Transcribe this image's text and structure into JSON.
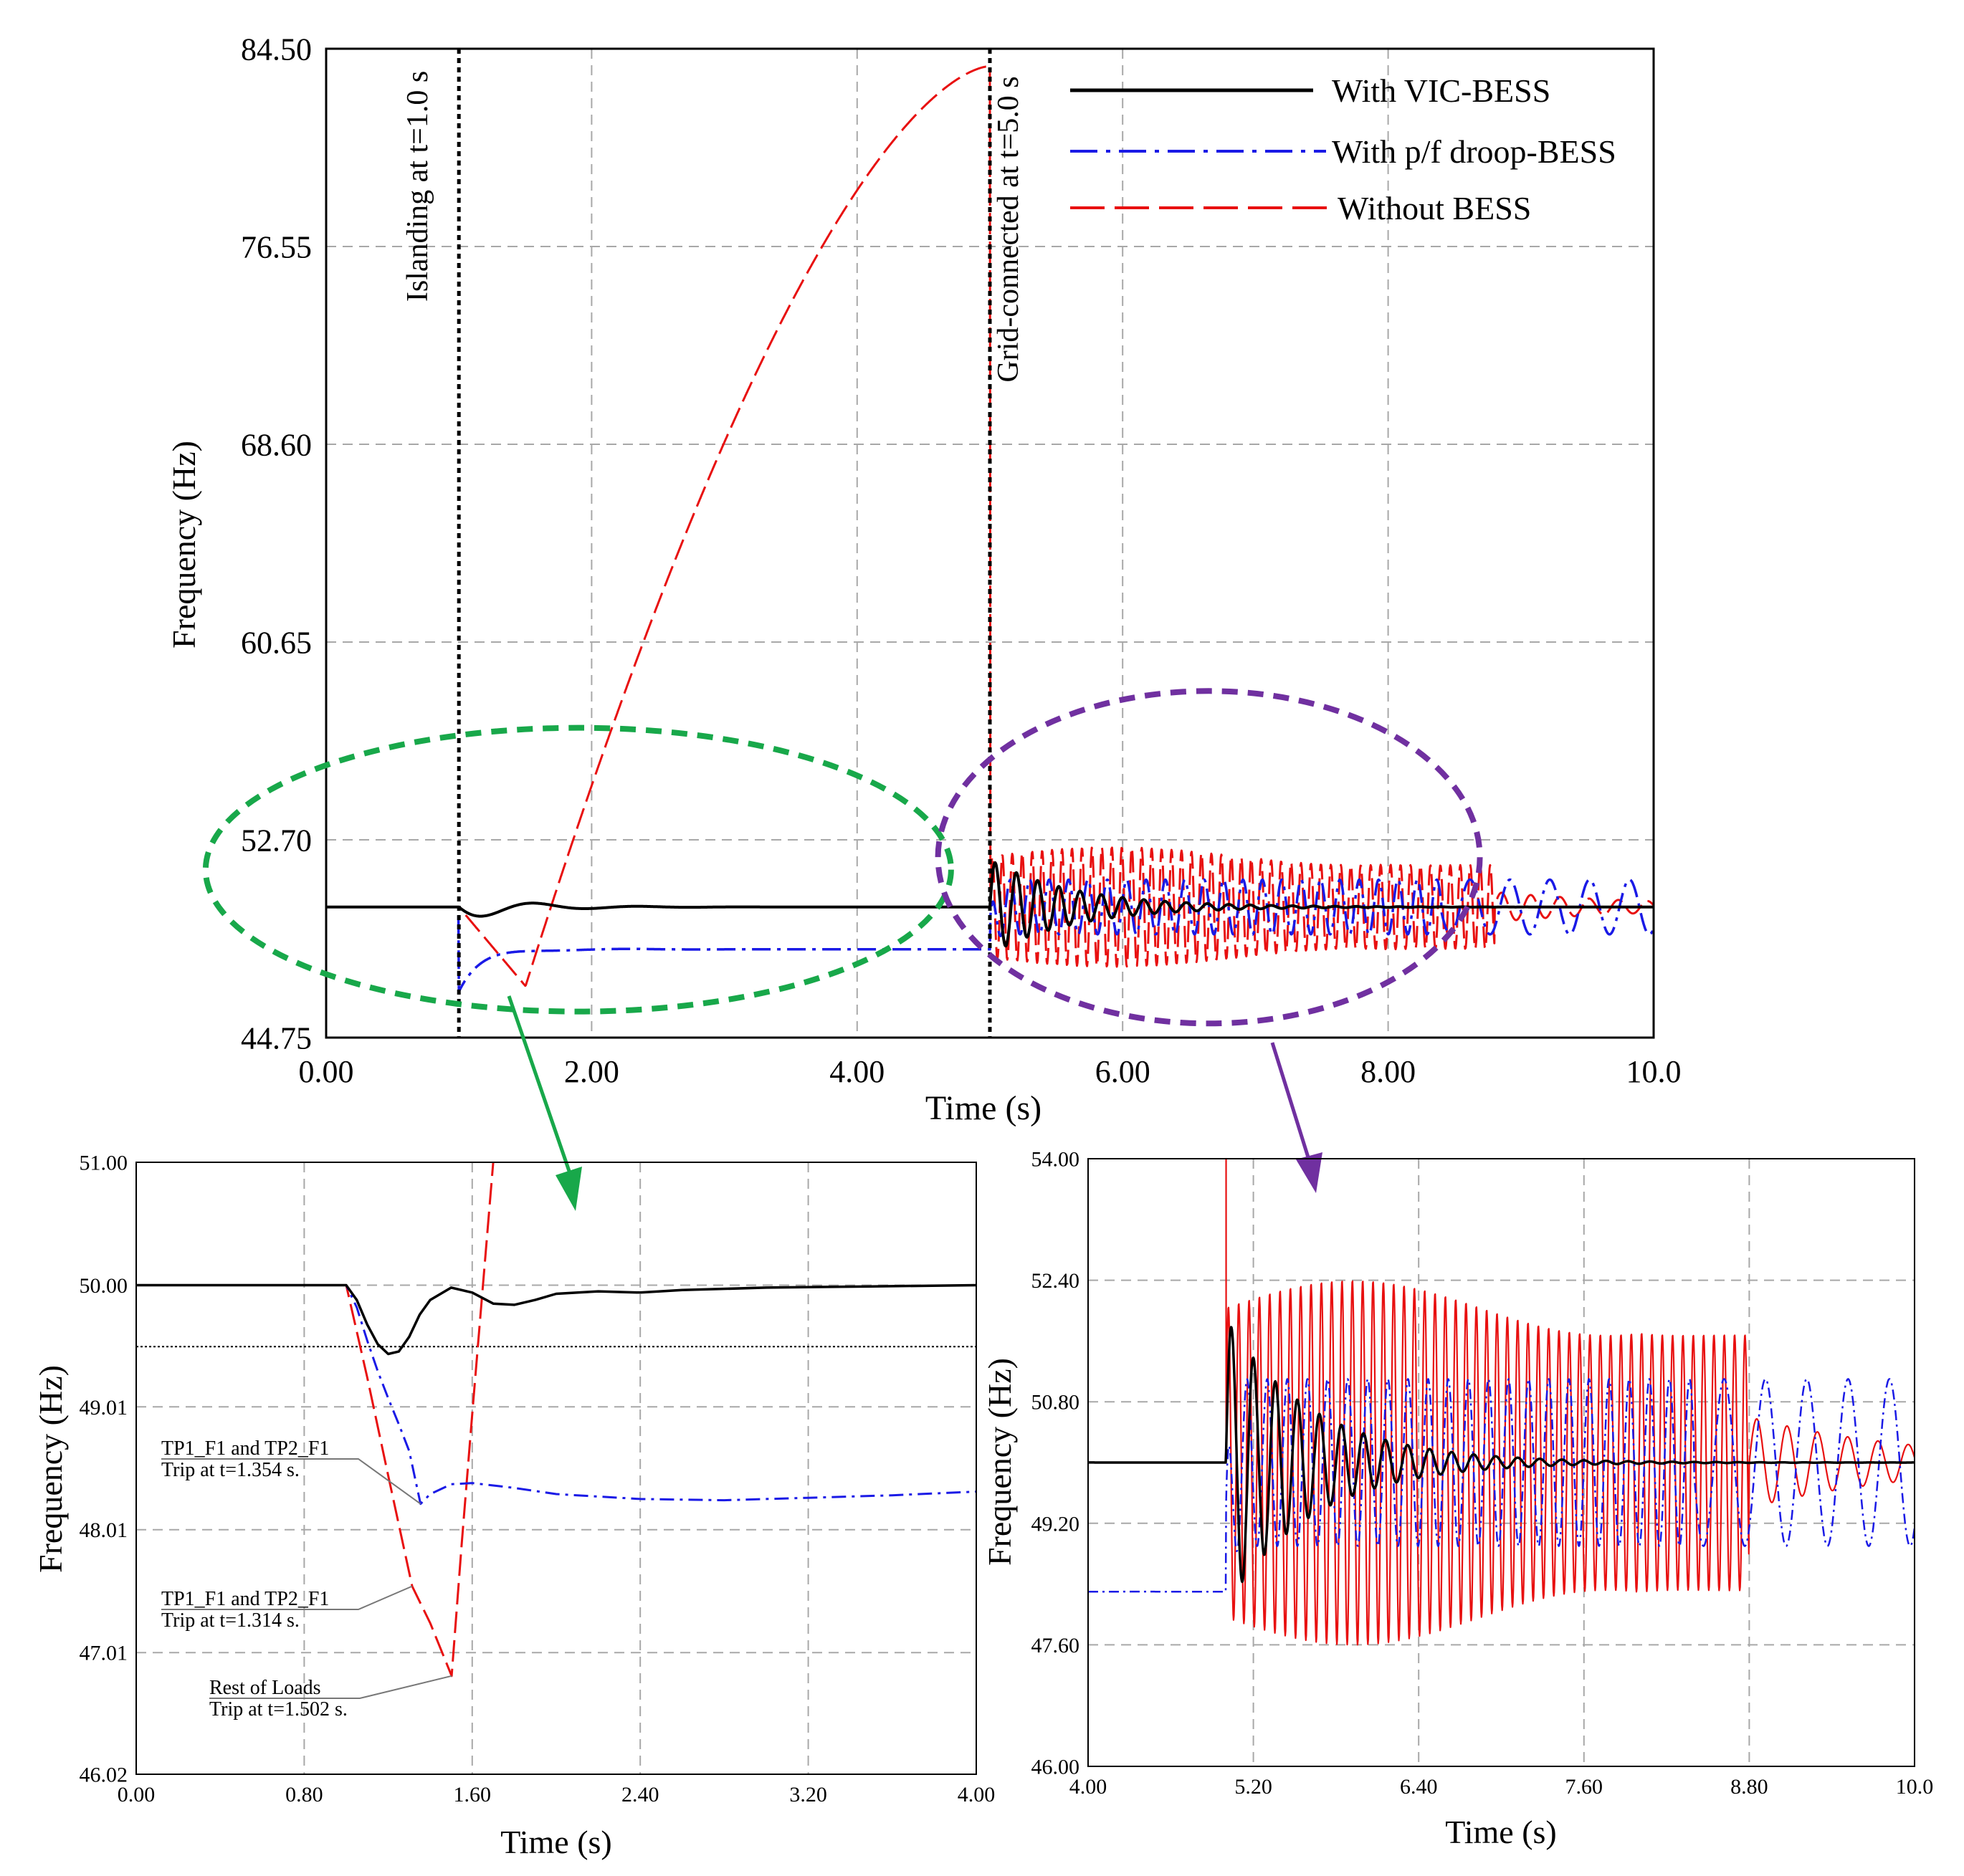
{
  "colors": {
    "vic": "#000000",
    "droop": "#1a1ae6",
    "without": "#e81010",
    "green_ellipse": "#18a84a",
    "purple_ellipse": "#7030a0",
    "grid": "#a8a8a8"
  },
  "chart_data": [
    {
      "id": "main",
      "type": "line",
      "xlabel": "Time (s)",
      "ylabel": "Frequency (Hz)",
      "xlim": [
        0,
        10
      ],
      "ylim": [
        44.75,
        84.5
      ],
      "xticks": [
        0,
        2,
        4,
        6,
        8,
        10
      ],
      "xtick_labels": [
        "0.00",
        "2.00",
        "4.00",
        "6.00",
        "8.00",
        "10.0"
      ],
      "yticks": [
        44.75,
        52.7,
        60.65,
        68.6,
        76.55,
        84.5
      ],
      "ytick_labels": [
        "44.75",
        "52.70",
        "60.65",
        "68.60",
        "76.55",
        "84.50"
      ],
      "grid": true,
      "legend": "top-right",
      "series": [
        {
          "name": "With VIC-BESS"
        },
        {
          "name": "With p/f droop-BESS"
        },
        {
          "name": "Without BESS"
        }
      ],
      "events": [
        {
          "t": 1.0,
          "label": "Islanding at t=1.0 s"
        },
        {
          "t": 5.0,
          "label": "Grid-connected at t=5.0 s"
        }
      ],
      "without_bess_peak": {
        "t": 5.0,
        "f": 83.8
      },
      "highlights": [
        {
          "label": "green ellipse",
          "center": [
            1.9,
            51.5
          ]
        },
        {
          "label": "purple ellipse",
          "center": [
            6.65,
            52.0
          ]
        }
      ]
    },
    {
      "id": "zoom_left",
      "type": "line",
      "xlabel": "Time (s)",
      "ylabel": "Frequency (Hz)",
      "xlim": [
        0,
        4
      ],
      "ylim": [
        46.02,
        51.0
      ],
      "xticks": [
        0,
        0.8,
        1.6,
        2.4,
        3.2,
        4.0
      ],
      "xtick_labels": [
        "0.00",
        "0.80",
        "1.60",
        "2.40",
        "3.20",
        "4.00"
      ],
      "yticks": [
        46.02,
        47.01,
        48.01,
        49.01,
        50.0,
        51.0
      ],
      "ytick_labels": [
        "46.02",
        "47.01",
        "48.01",
        "49.01",
        "50.00",
        "51.00"
      ],
      "grid": true,
      "threshold": 49.5,
      "series": [
        {
          "name": "With VIC-BESS",
          "x": [
            0,
            1.0,
            1.05,
            1.1,
            1.15,
            1.2,
            1.25,
            1.3,
            1.35,
            1.4,
            1.5,
            1.6,
            1.7,
            1.8,
            1.9,
            2.0,
            2.2,
            2.4,
            2.6,
            3.0,
            3.5,
            4.0
          ],
          "y": [
            50.0,
            50.0,
            49.88,
            49.68,
            49.52,
            49.44,
            49.46,
            49.58,
            49.76,
            49.88,
            49.98,
            49.94,
            49.85,
            49.84,
            49.88,
            49.93,
            49.95,
            49.94,
            49.96,
            49.98,
            49.99,
            50.0
          ]
        },
        {
          "name": "With p/f droop-BESS",
          "x": [
            0,
            1.0,
            1.05,
            1.1,
            1.15,
            1.2,
            1.25,
            1.3,
            1.354,
            1.4,
            1.5,
            1.6,
            1.8,
            2.0,
            2.4,
            2.8,
            3.2,
            3.6,
            4.0
          ],
          "y": [
            50.0,
            50.0,
            49.82,
            49.55,
            49.3,
            49.08,
            48.87,
            48.65,
            48.22,
            48.3,
            48.38,
            48.39,
            48.35,
            48.3,
            48.26,
            48.25,
            48.27,
            48.29,
            48.32
          ]
        },
        {
          "name": "Without BESS",
          "x": [
            0,
            1.0,
            1.1,
            1.2,
            1.314,
            1.4,
            1.502,
            1.55,
            1.6,
            1.65,
            1.7
          ],
          "y": [
            50.0,
            50.0,
            49.25,
            48.45,
            47.55,
            47.25,
            46.82,
            47.9,
            48.95,
            49.98,
            51.0
          ]
        }
      ],
      "annotations": [
        {
          "line1": "TP1_F1 and TP2_F1",
          "line2": "Trip at t=1.354 s.",
          "point": [
            1.354,
            48.22
          ]
        },
        {
          "line1": "TP1_F1 and TP2_F1",
          "line2": "Trip at t=1.314 s.",
          "point": [
            1.314,
            47.55
          ]
        },
        {
          "line1": "Rest of Loads",
          "line2": "Trip at t=1.502 s.",
          "point": [
            1.502,
            46.82
          ]
        }
      ]
    },
    {
      "id": "zoom_right",
      "type": "line",
      "xlabel": "Time (s)",
      "ylabel": "Frequency (Hz)",
      "xlim": [
        4,
        10
      ],
      "ylim": [
        46.0,
        54.0
      ],
      "xticks": [
        4,
        5.2,
        6.4,
        7.6,
        8.8,
        10
      ],
      "xtick_labels": [
        "4.00",
        "5.20",
        "6.40",
        "7.60",
        "8.80",
        "10.0"
      ],
      "yticks": [
        46.0,
        47.6,
        49.2,
        50.8,
        52.4,
        54.0
      ],
      "ytick_labels": [
        "46.00",
        "47.60",
        "49.20",
        "50.80",
        "52.40",
        "54.00"
      ],
      "grid": true,
      "series_params": {
        "vic": {
          "pre": 50.0,
          "amp": 1.9,
          "period": 0.16,
          "decay": 1.6
        },
        "droop": {
          "pre": 48.3,
          "amp": 1.1,
          "period": 0.146,
          "period_late": 0.3
        },
        "without": {
          "amp": 2.4,
          "period": 0.075,
          "settle": 8.8,
          "late_amp": 0.6,
          "late_period": 0.22
        }
      }
    }
  ]
}
